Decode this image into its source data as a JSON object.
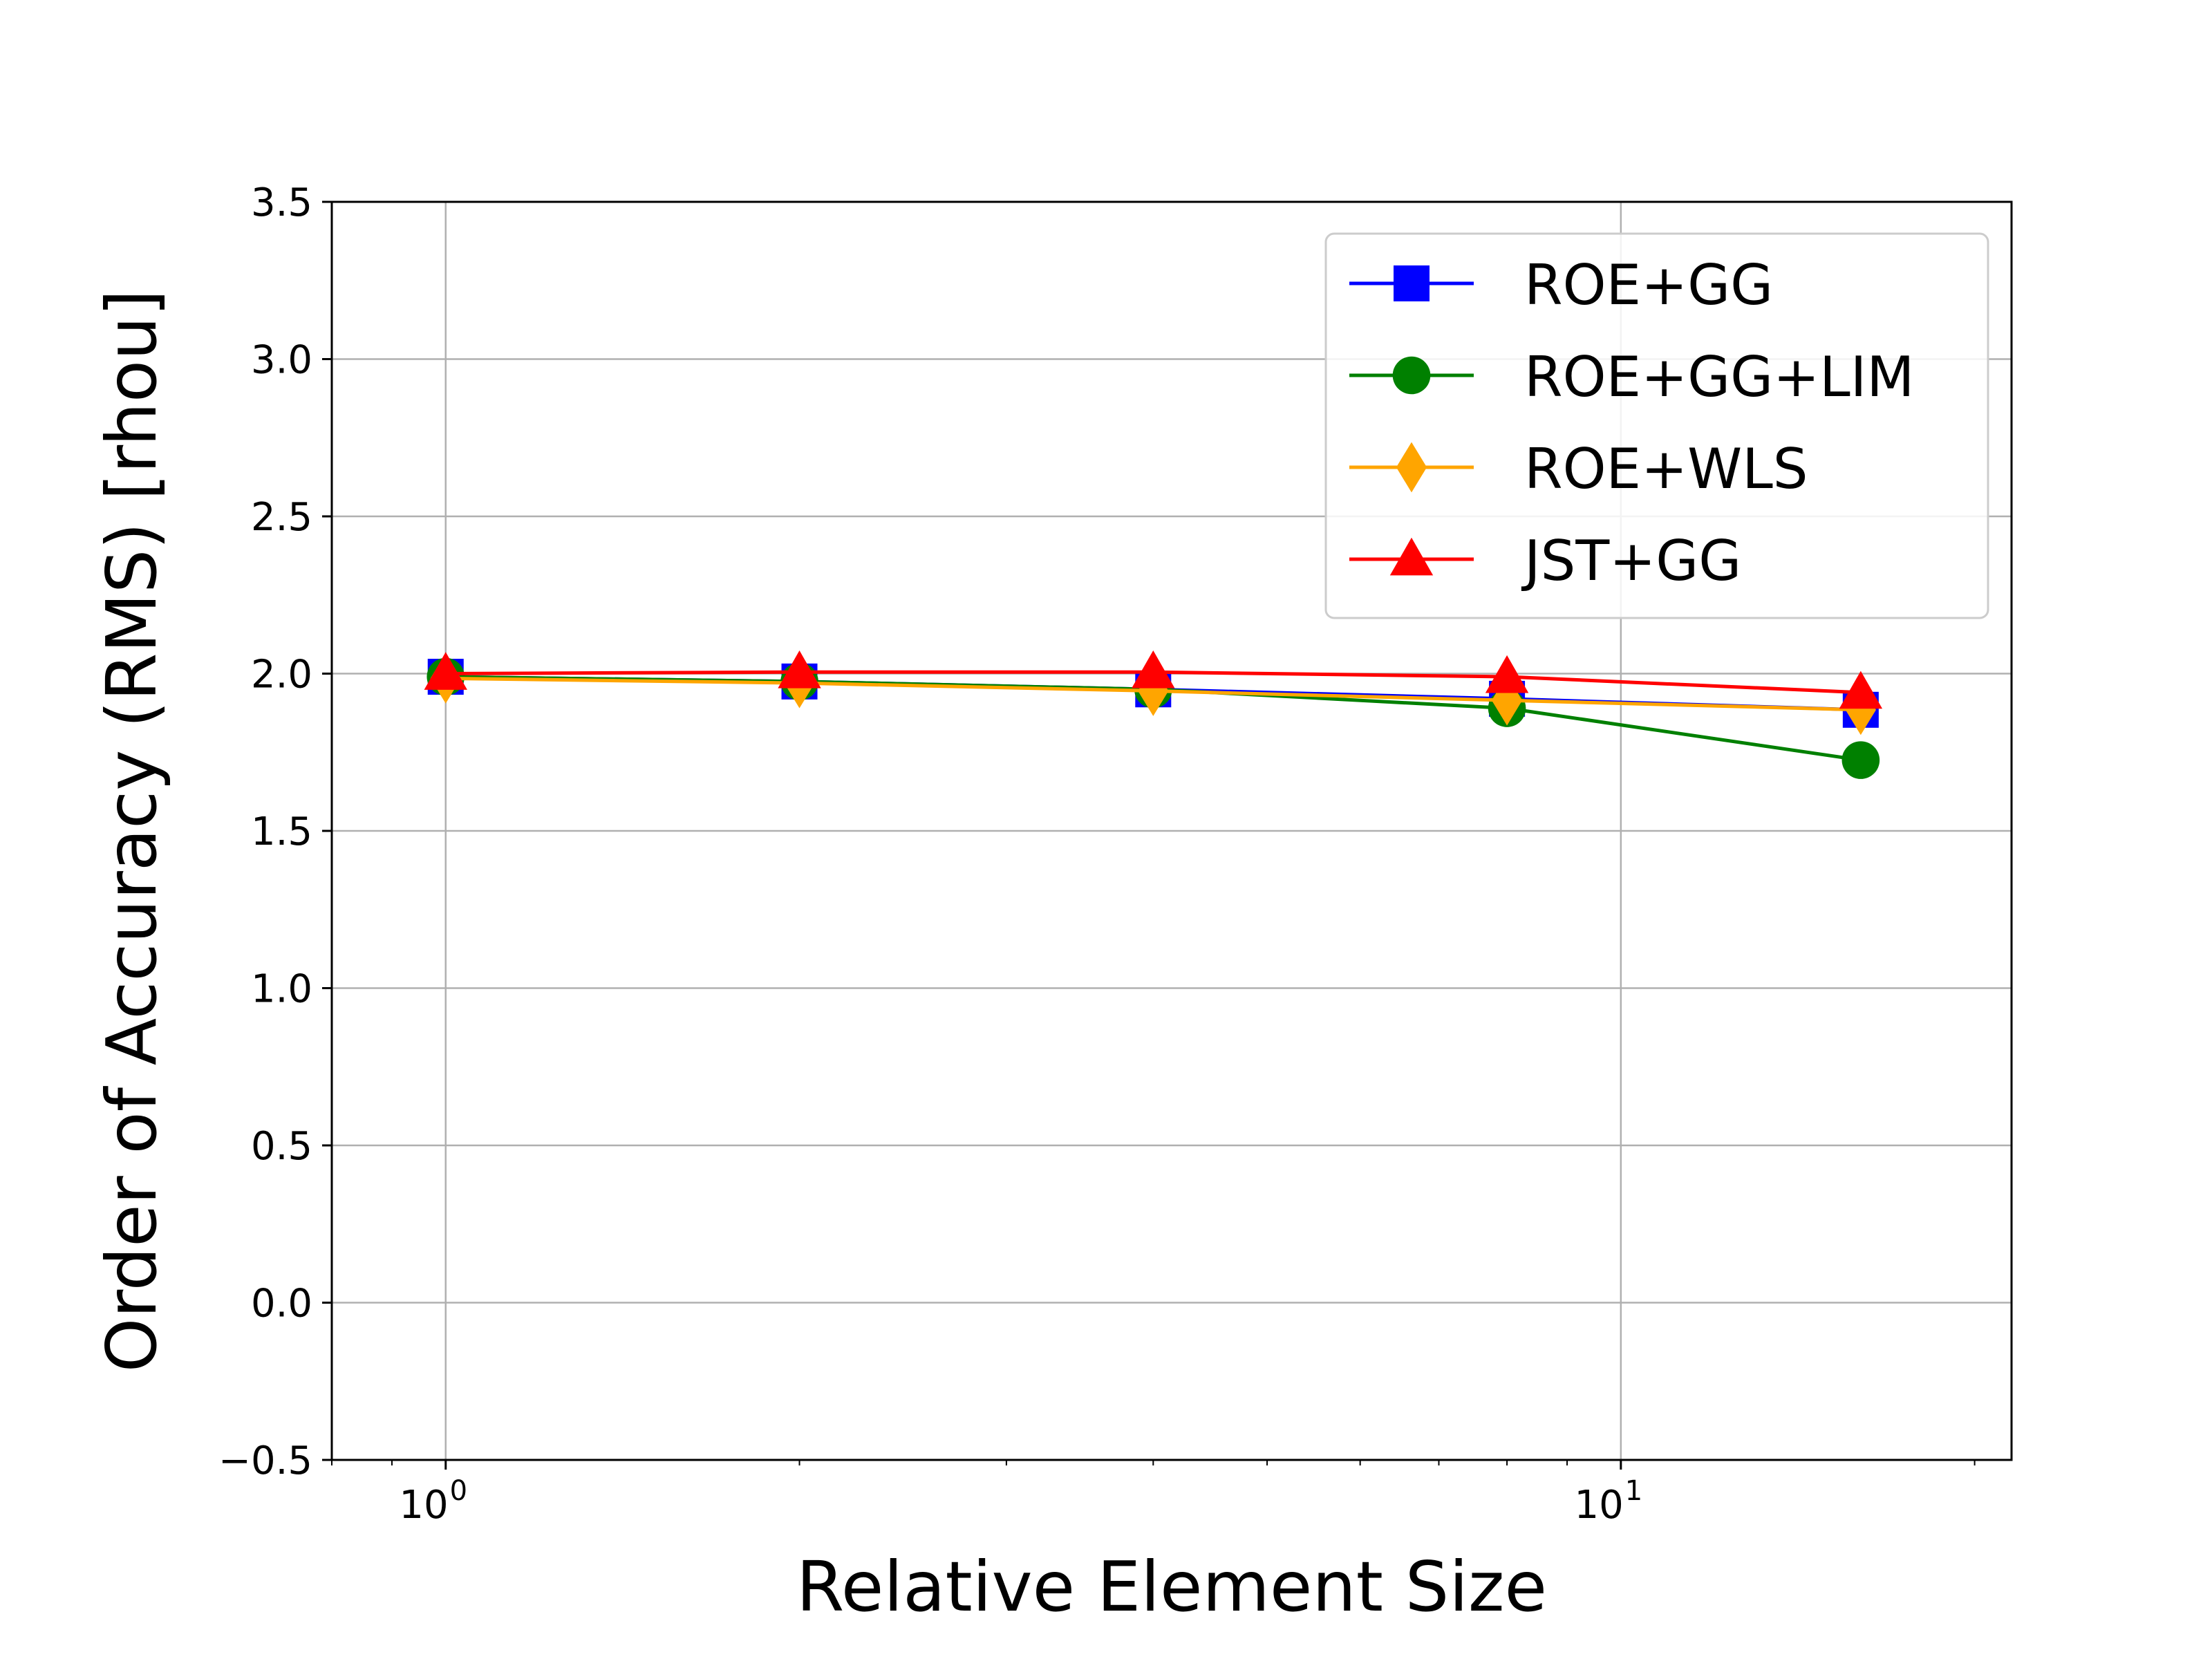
{
  "chart_data": {
    "type": "line",
    "xlabel": "Relative Element Size",
    "ylabel": "Order of Accuracy (RMS) [rhou]",
    "x_scale": "log",
    "xlim": [
      0.8,
      21.5
    ],
    "ylim": [
      -0.5,
      3.5
    ],
    "x_tick_labels": [
      {
        "value": 1,
        "base": "10",
        "exp": "0"
      },
      {
        "value": 10,
        "base": "10",
        "exp": "1"
      }
    ],
    "y_ticks": [
      -0.5,
      0.0,
      0.5,
      1.0,
      1.5,
      2.0,
      2.5,
      3.0,
      3.5
    ],
    "y_tick_labels": [
      "−0.5",
      "0.0",
      "0.5",
      "1.0",
      "1.5",
      "2.0",
      "2.5",
      "3.0",
      "3.5"
    ],
    "grid": true,
    "legend_position": "top-right",
    "x": [
      1,
      2,
      4,
      8,
      16
    ],
    "series": [
      {
        "name": "ROE+GG",
        "color": "#0000ff",
        "marker": "square",
        "values": [
          1.99,
          1.975,
          1.95,
          1.92,
          1.885
        ]
      },
      {
        "name": "ROE+GG+LIM",
        "color": "#008000",
        "marker": "circle",
        "values": [
          1.99,
          1.975,
          1.95,
          1.89,
          1.725
        ]
      },
      {
        "name": "ROE+WLS",
        "color": "#ffa500",
        "marker": "diamond",
        "values": [
          1.985,
          1.97,
          1.945,
          1.915,
          1.885
        ]
      },
      {
        "name": "JST+GG",
        "color": "#ff0000",
        "marker": "triangle",
        "values": [
          2.0,
          2.005,
          2.005,
          1.99,
          1.94
        ]
      }
    ]
  }
}
